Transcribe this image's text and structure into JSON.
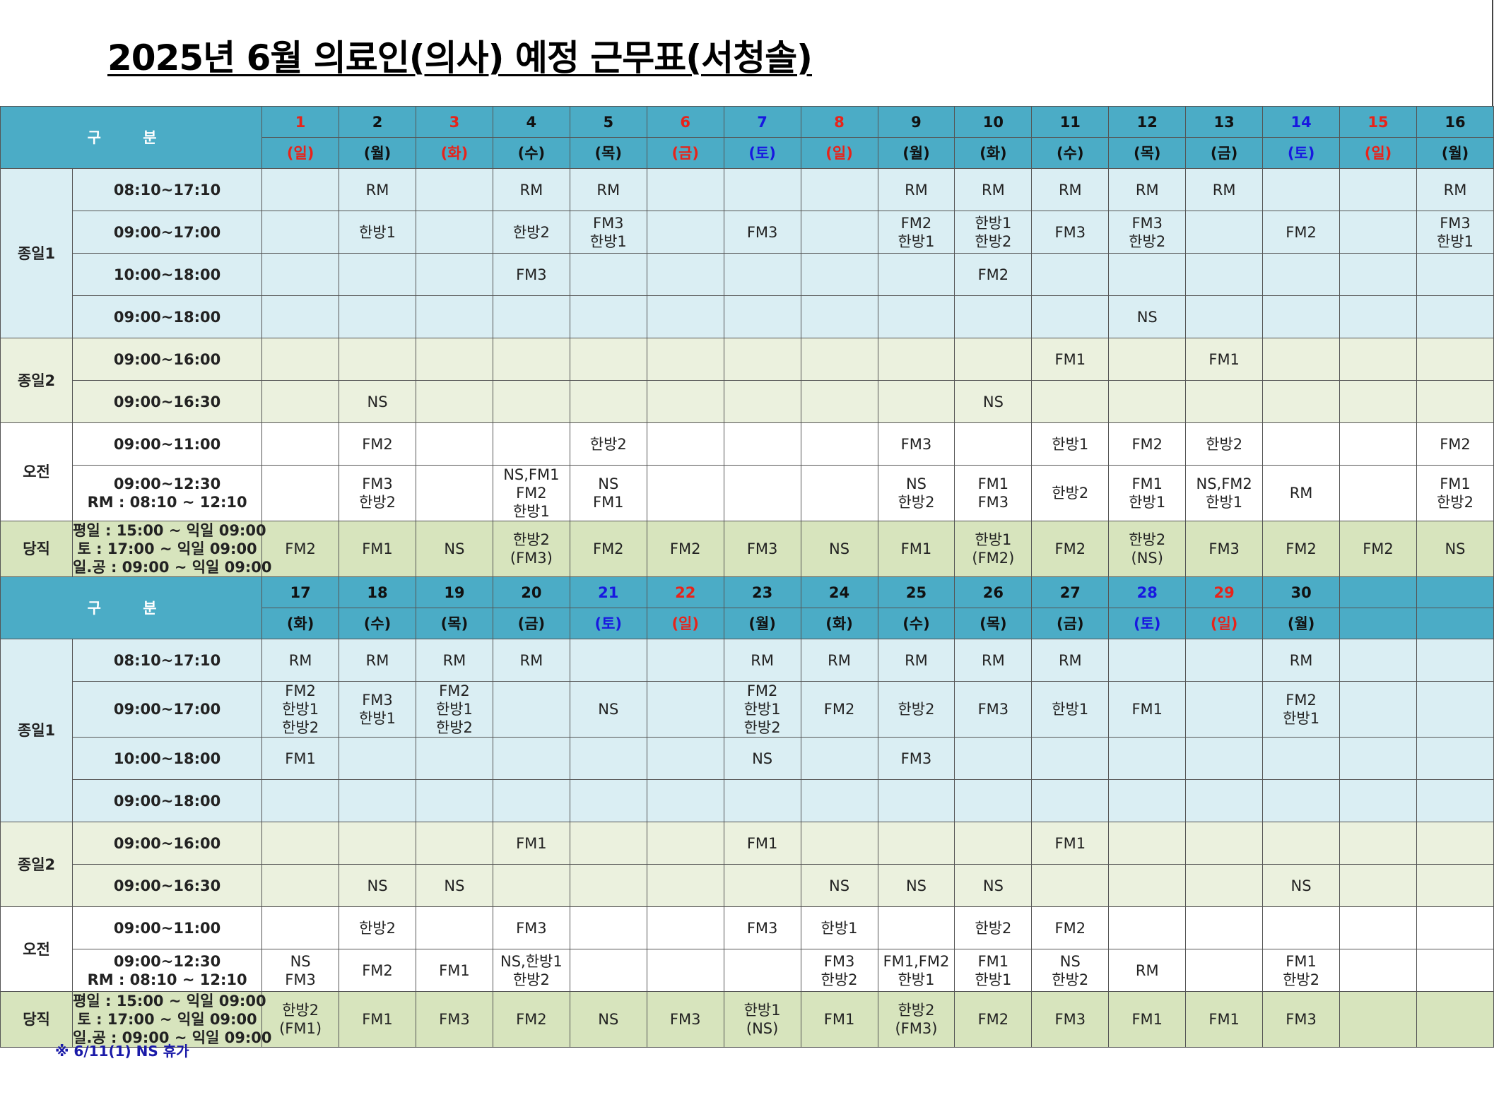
{
  "title": "2025년 6월  의료인(의사) 예정 근무표(서청솔)",
  "header_label": "구 분",
  "duty_label": "당직",
  "duty_times": [
    "평일 : 15:00 ~ 익일 09:00",
    "토     : 17:00 ~ 익일 09:00",
    "일.공 : 09:00 ~ 익일 09:00"
  ],
  "groups": [
    {
      "name": "종일1",
      "slots": [
        "08:10~17:10",
        "09:00~17:00",
        "10:00~18:00",
        "09:00~18:00"
      ]
    },
    {
      "name": "종일2",
      "slots": [
        "09:00~16:00",
        "09:00~16:30"
      ]
    },
    {
      "name": "오전",
      "slots": [
        "09:00~11:00",
        "09:00~12:30\nRM : 08:10 ~ 12:10"
      ]
    }
  ],
  "blocks": [
    {
      "days": [
        {
          "num": "1",
          "wd": "(일)",
          "color": "red"
        },
        {
          "num": "2",
          "wd": "(월)",
          "color": "black"
        },
        {
          "num": "3",
          "wd": "(화)",
          "color": "red"
        },
        {
          "num": "4",
          "wd": "(수)",
          "color": "black"
        },
        {
          "num": "5",
          "wd": "(목)",
          "color": "black"
        },
        {
          "num": "6",
          "wd": "(금)",
          "color": "red"
        },
        {
          "num": "7",
          "wd": "(토)",
          "color": "blue"
        },
        {
          "num": "8",
          "wd": "(일)",
          "color": "red"
        },
        {
          "num": "9",
          "wd": "(월)",
          "color": "black"
        },
        {
          "num": "10",
          "wd": "(화)",
          "color": "black"
        },
        {
          "num": "11",
          "wd": "(수)",
          "color": "black"
        },
        {
          "num": "12",
          "wd": "(목)",
          "color": "black"
        },
        {
          "num": "13",
          "wd": "(금)",
          "color": "black"
        },
        {
          "num": "14",
          "wd": "(토)",
          "color": "blue"
        },
        {
          "num": "15",
          "wd": "(일)",
          "color": "red"
        },
        {
          "num": "16",
          "wd": "(월)",
          "color": "black"
        }
      ],
      "rows": [
        [
          "",
          "RM",
          "",
          "RM",
          "RM",
          "",
          "",
          "",
          "RM",
          "RM",
          "RM",
          "RM",
          "RM",
          "",
          "",
          "RM"
        ],
        [
          "",
          "한방1",
          "",
          "한방2",
          "FM3\n한방1",
          "",
          "FM3",
          "",
          "FM2\n한방1",
          "한방1\n한방2",
          "FM3",
          "FM3\n한방2",
          "",
          "FM2",
          "",
          "FM3\n한방1"
        ],
        [
          "",
          "",
          "",
          "FM3",
          "",
          "",
          "",
          "",
          "",
          "FM2",
          "",
          "",
          "",
          "",
          "",
          ""
        ],
        [
          "",
          "",
          "",
          "",
          "",
          "",
          "",
          "",
          "",
          "",
          "",
          "NS",
          "",
          "",
          "",
          ""
        ],
        [
          "",
          "",
          "",
          "",
          "",
          "",
          "",
          "",
          "",
          "",
          "FM1",
          "",
          "FM1",
          "",
          "",
          ""
        ],
        [
          "",
          "NS",
          "",
          "",
          "",
          "",
          "",
          "",
          "",
          "NS",
          "",
          "",
          "",
          "",
          "",
          ""
        ],
        [
          "",
          "FM2",
          "",
          "",
          "한방2",
          "",
          "",
          "",
          "FM3",
          "",
          "한방1",
          "FM2",
          "한방2",
          "",
          "",
          "FM2"
        ],
        [
          "",
          "FM3\n한방2",
          "",
          "NS,FM1\nFM2\n한방1",
          "NS\nFM1",
          "",
          "",
          "",
          "NS\n한방2",
          "FM1\nFM3",
          "한방2",
          "FM1\n한방1",
          "NS,FM2\n한방1",
          "RM",
          "",
          "FM1\n한방2"
        ]
      ],
      "duty": [
        "FM2",
        "FM1",
        "NS",
        "한방2\n(FM3)",
        "FM2",
        "FM2",
        "FM3",
        "NS",
        "FM1",
        "한방1\n(FM2)",
        "FM2",
        "한방2\n(NS)",
        "FM3",
        "FM2",
        "FM2",
        "NS"
      ]
    },
    {
      "days": [
        {
          "num": "17",
          "wd": "(화)",
          "color": "black"
        },
        {
          "num": "18",
          "wd": "(수)",
          "color": "black"
        },
        {
          "num": "19",
          "wd": "(목)",
          "color": "black"
        },
        {
          "num": "20",
          "wd": "(금)",
          "color": "black"
        },
        {
          "num": "21",
          "wd": "(토)",
          "color": "blue"
        },
        {
          "num": "22",
          "wd": "(일)",
          "color": "red"
        },
        {
          "num": "23",
          "wd": "(월)",
          "color": "black"
        },
        {
          "num": "24",
          "wd": "(화)",
          "color": "black"
        },
        {
          "num": "25",
          "wd": "(수)",
          "color": "black"
        },
        {
          "num": "26",
          "wd": "(목)",
          "color": "black"
        },
        {
          "num": "27",
          "wd": "(금)",
          "color": "black"
        },
        {
          "num": "28",
          "wd": "(토)",
          "color": "blue"
        },
        {
          "num": "29",
          "wd": "(일)",
          "color": "red"
        },
        {
          "num": "30",
          "wd": "(월)",
          "color": "black"
        },
        {
          "num": "",
          "wd": "",
          "color": "black"
        },
        {
          "num": "",
          "wd": "",
          "color": "black"
        }
      ],
      "rows": [
        [
          "RM",
          "RM",
          "RM",
          "RM",
          "",
          "",
          "RM",
          "RM",
          "RM",
          "RM",
          "RM",
          "",
          "",
          "RM",
          "",
          ""
        ],
        [
          "FM2\n한방1\n한방2",
          "FM3\n한방1",
          "FM2\n한방1\n한방2",
          "",
          "NS",
          "",
          "FM2\n한방1\n한방2",
          "FM2",
          "한방2",
          "FM3",
          "한방1",
          "FM1",
          "",
          "FM2\n한방1",
          "",
          ""
        ],
        [
          "FM1",
          "",
          "",
          "",
          "",
          "",
          "NS",
          "",
          "FM3",
          "",
          "",
          "",
          "",
          "",
          "",
          ""
        ],
        [
          "",
          "",
          "",
          "",
          "",
          "",
          "",
          "",
          "",
          "",
          "",
          "",
          "",
          "",
          "",
          ""
        ],
        [
          "",
          "",
          "",
          "FM1",
          "",
          "",
          "FM1",
          "",
          "",
          "",
          "FM1",
          "",
          "",
          "",
          "",
          ""
        ],
        [
          "",
          "NS",
          "NS",
          "",
          "",
          "",
          "",
          "NS",
          "NS",
          "NS",
          "",
          "",
          "",
          "NS",
          "",
          ""
        ],
        [
          "",
          "한방2",
          "",
          "FM3",
          "",
          "",
          "FM3",
          "한방1",
          "",
          "한방2",
          "FM2",
          "",
          "",
          "",
          "",
          ""
        ],
        [
          "NS\nFM3",
          "FM2",
          "FM1",
          "NS,한방1\n한방2",
          "",
          "",
          "",
          "FM3\n한방2",
          "FM1,FM2\n한방1",
          "FM1\n한방1",
          "NS\n한방2",
          "RM",
          "",
          "FM1\n한방2",
          "",
          ""
        ]
      ],
      "duty": [
        "한방2\n(FM1)",
        "FM1",
        "FM3",
        "FM2",
        "NS",
        "FM3",
        "한방1\n(NS)",
        "FM1",
        "한방2\n(FM3)",
        "FM2",
        "FM3",
        "FM1",
        "FM1",
        "FM3",
        "",
        ""
      ]
    }
  ],
  "note": "※ 6/11(1) NS 휴가"
}
